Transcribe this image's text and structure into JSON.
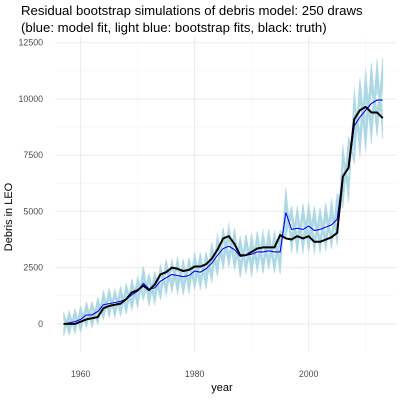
{
  "chart_data": {
    "type": "line",
    "title_line1": "Residual bootstrap simulations of debris model: 250 draws",
    "title_line2": "(blue: model fit, light blue: bootstrap fits, black: truth)",
    "xlabel": "year",
    "ylabel": "Debris in LEO",
    "xlim": [
      1955.5,
      2015.5
    ],
    "ylim": [
      -1250,
      12800
    ],
    "x_ticks": [
      1960,
      1980,
      2000
    ],
    "x_tick_labels": [
      "1960",
      "1980",
      "2000"
    ],
    "y_ticks": [
      0,
      2500,
      5000,
      7500,
      10000,
      12500
    ],
    "y_tick_labels": [
      "0",
      "2500",
      "5000",
      "7500",
      "10000",
      "12500"
    ],
    "grid": true,
    "bootstrap_draws": 250,
    "colors": {
      "model_fit": "#0000ff",
      "bootstrap": "#add8e6",
      "truth": "#000000",
      "grid_major": "#ebebeb",
      "grid_minor": "#f5f5f5"
    },
    "series": [
      {
        "name": "truth",
        "x": [
          1957,
          1958,
          1959,
          1960,
          1961,
          1962,
          1963,
          1964,
          1965,
          1966,
          1967,
          1968,
          1969,
          1970,
          1971,
          1972,
          1973,
          1974,
          1975,
          1976,
          1977,
          1978,
          1979,
          1980,
          1981,
          1982,
          1983,
          1984,
          1985,
          1986,
          1987,
          1988,
          1989,
          1990,
          1991,
          1992,
          1993,
          1994,
          1995,
          1996,
          1997,
          1998,
          1999,
          2000,
          2001,
          2002,
          2003,
          2004,
          2005,
          2006,
          2007,
          2008,
          2009,
          2010,
          2011,
          2012,
          2013
        ],
        "values": [
          0,
          0,
          0,
          100,
          200,
          250,
          300,
          700,
          800,
          850,
          900,
          1100,
          1400,
          1500,
          1700,
          1500,
          1750,
          2200,
          2300,
          2500,
          2450,
          2350,
          2400,
          2550,
          2550,
          2650,
          2900,
          3300,
          3800,
          3900,
          3550,
          3050,
          3050,
          3200,
          3350,
          3400,
          3400,
          3400,
          3950,
          3800,
          3750,
          3900,
          3800,
          3900,
          3650,
          3650,
          3750,
          3850,
          4050,
          6550,
          6950,
          9100,
          9500,
          9650,
          9400,
          9400,
          9150
        ]
      },
      {
        "name": "model fit",
        "x": [
          1957,
          1958,
          1959,
          1960,
          1961,
          1962,
          1963,
          1964,
          1965,
          1966,
          1967,
          1968,
          1969,
          1970,
          1971,
          1972,
          1973,
          1974,
          1975,
          1976,
          1977,
          1978,
          1979,
          1980,
          1981,
          1982,
          1983,
          1984,
          1985,
          1986,
          1987,
          1988,
          1989,
          1990,
          1991,
          1992,
          1993,
          1994,
          1995,
          1996,
          1997,
          1998,
          1999,
          2000,
          2001,
          2002,
          2003,
          2004,
          2005,
          2006,
          2007,
          2008,
          2009,
          2010,
          2011,
          2012,
          2013
        ],
        "values": [
          0,
          50,
          100,
          200,
          400,
          400,
          550,
          850,
          900,
          950,
          1000,
          1100,
          1300,
          1450,
          1800,
          1550,
          1600,
          1900,
          2050,
          2200,
          2150,
          2100,
          2150,
          2350,
          2300,
          2450,
          2700,
          3050,
          3350,
          3450,
          3300,
          3000,
          3050,
          3100,
          3200,
          3200,
          3250,
          3200,
          3200,
          4950,
          4200,
          4250,
          4200,
          4350,
          4150,
          4200,
          4300,
          4400,
          4650,
          6550,
          6900,
          8800,
          9200,
          9500,
          9800,
          9950,
          9950
        ]
      }
    ]
  }
}
